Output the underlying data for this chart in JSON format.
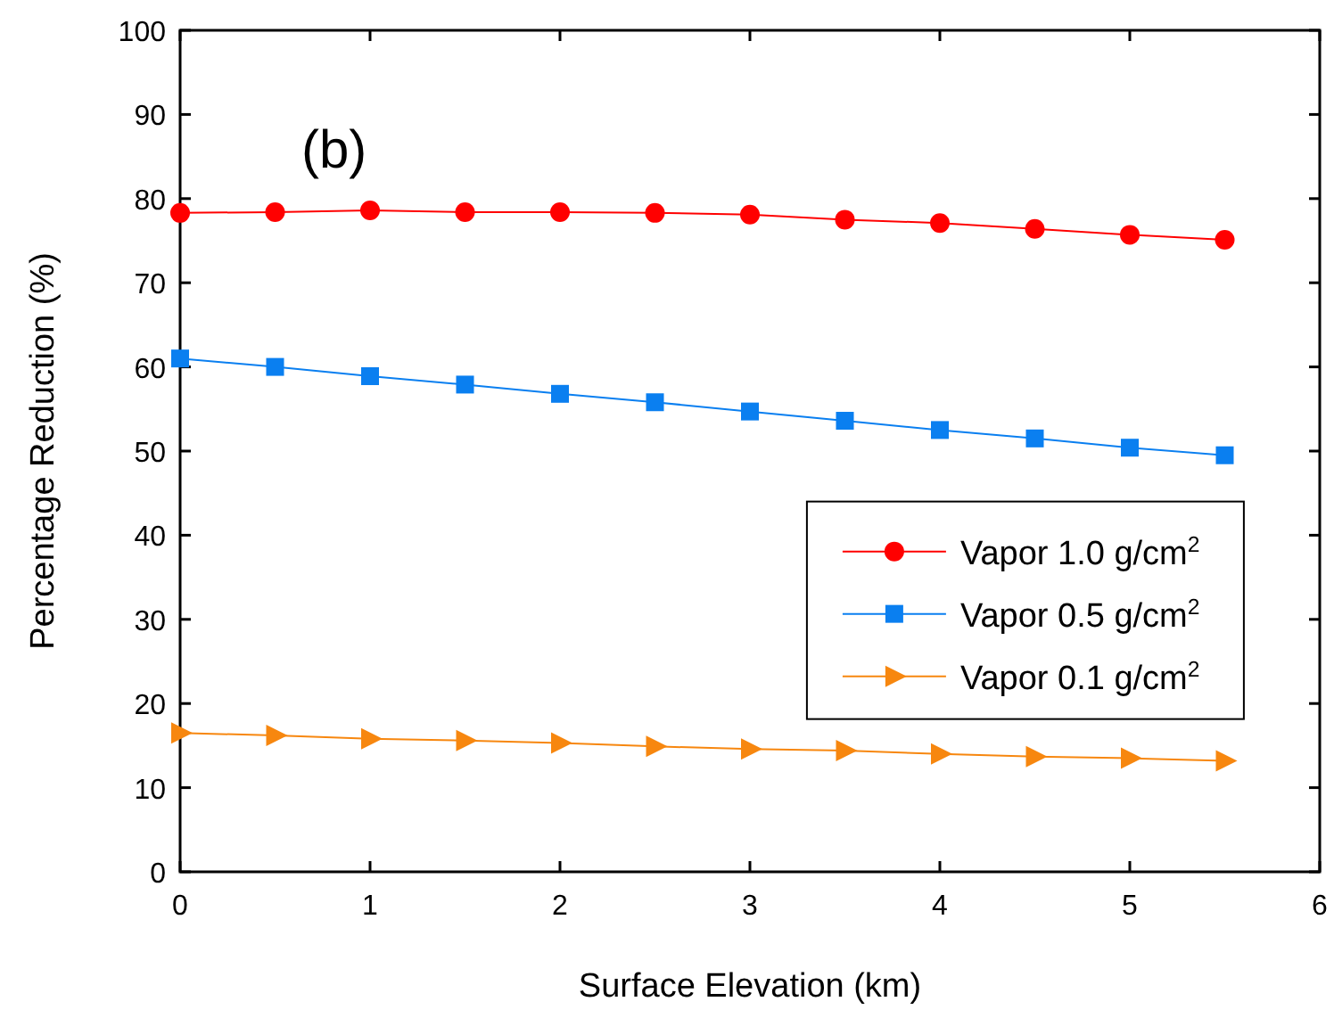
{
  "chart_data": {
    "type": "line",
    "xlabel": "Surface Elevation (km)",
    "ylabel": "Percentage Reduction (%)",
    "annotations": [
      "(b)"
    ],
    "x": [
      0,
      0.5,
      1,
      1.5,
      2,
      2.5,
      3,
      3.5,
      4,
      4.5,
      5,
      5.5
    ],
    "xlim": [
      0,
      6
    ],
    "xticks": [
      0,
      1,
      2,
      3,
      4,
      5,
      6
    ],
    "ylim": [
      0,
      100
    ],
    "yticks": [
      0,
      10,
      20,
      30,
      40,
      50,
      60,
      70,
      80,
      90,
      100
    ],
    "grid": false,
    "legend": "right",
    "line_style": "solid",
    "series": [
      {
        "name": "Vapor 1.0 g/cm$^{2}$",
        "color": "#ff0000",
        "marker": "circle",
        "values": [
          78.3,
          78.4,
          78.6,
          78.4,
          78.4,
          78.3,
          78.1,
          77.5,
          77.1,
          76.4,
          75.7,
          75.1
        ]
      },
      {
        "name": "Vapor 0.5 g/cm$^{2}$",
        "color": "#0a7ff0",
        "marker": "square",
        "values": [
          61,
          60,
          58.9,
          57.9,
          56.8,
          55.8,
          54.7,
          53.6,
          52.5,
          51.5,
          50.4,
          49.5
        ]
      },
      {
        "name": "Vapor 0.1 g/cm$^{2}$",
        "color": "#f7870f",
        "marker": "triangle",
        "values": [
          16.5,
          16.2,
          15.8,
          15.6,
          15.3,
          14.9,
          14.6,
          14.4,
          14.0,
          13.7,
          13.5,
          13.2
        ]
      }
    ]
  }
}
